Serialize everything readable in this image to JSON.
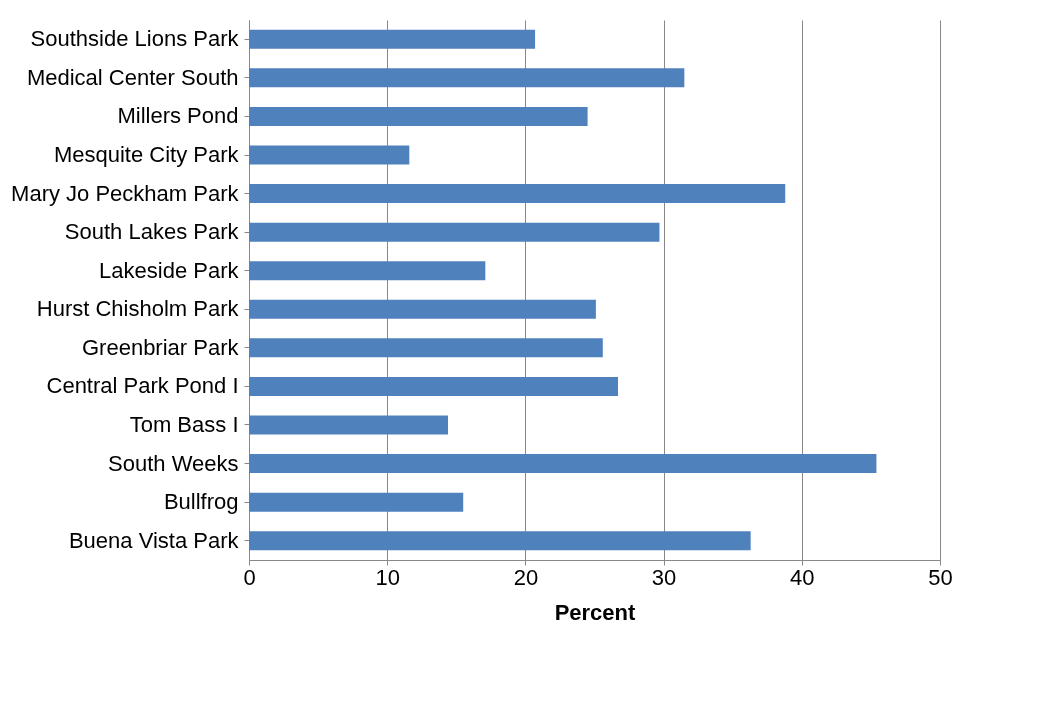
{
  "chart_data": {
    "type": "bar",
    "orientation": "horizontal",
    "xlabel": "Percent",
    "categories": [
      "Southside Lions Park",
      "Medical Center South",
      "Millers Pond",
      "Mesquite City Park",
      "Mary Jo Peckham Park",
      "South Lakes Park",
      "Lakeside Park",
      "Hurst Chisholm Park",
      "Greenbriar Park",
      "Central Park Pond I",
      "Tom Bass I",
      "South Weeks",
      "Bullfrog",
      "Buena Vista Park"
    ],
    "values": [
      20.7,
      31.5,
      24.5,
      11.6,
      38.8,
      29.7,
      17.1,
      25.1,
      25.6,
      26.7,
      14.4,
      45.4,
      15.5,
      36.3
    ],
    "color": "#4f81bd",
    "xlim": [
      0,
      50
    ],
    "xticks": [
      0,
      10,
      20,
      30,
      40,
      50
    ],
    "grid": "x"
  }
}
